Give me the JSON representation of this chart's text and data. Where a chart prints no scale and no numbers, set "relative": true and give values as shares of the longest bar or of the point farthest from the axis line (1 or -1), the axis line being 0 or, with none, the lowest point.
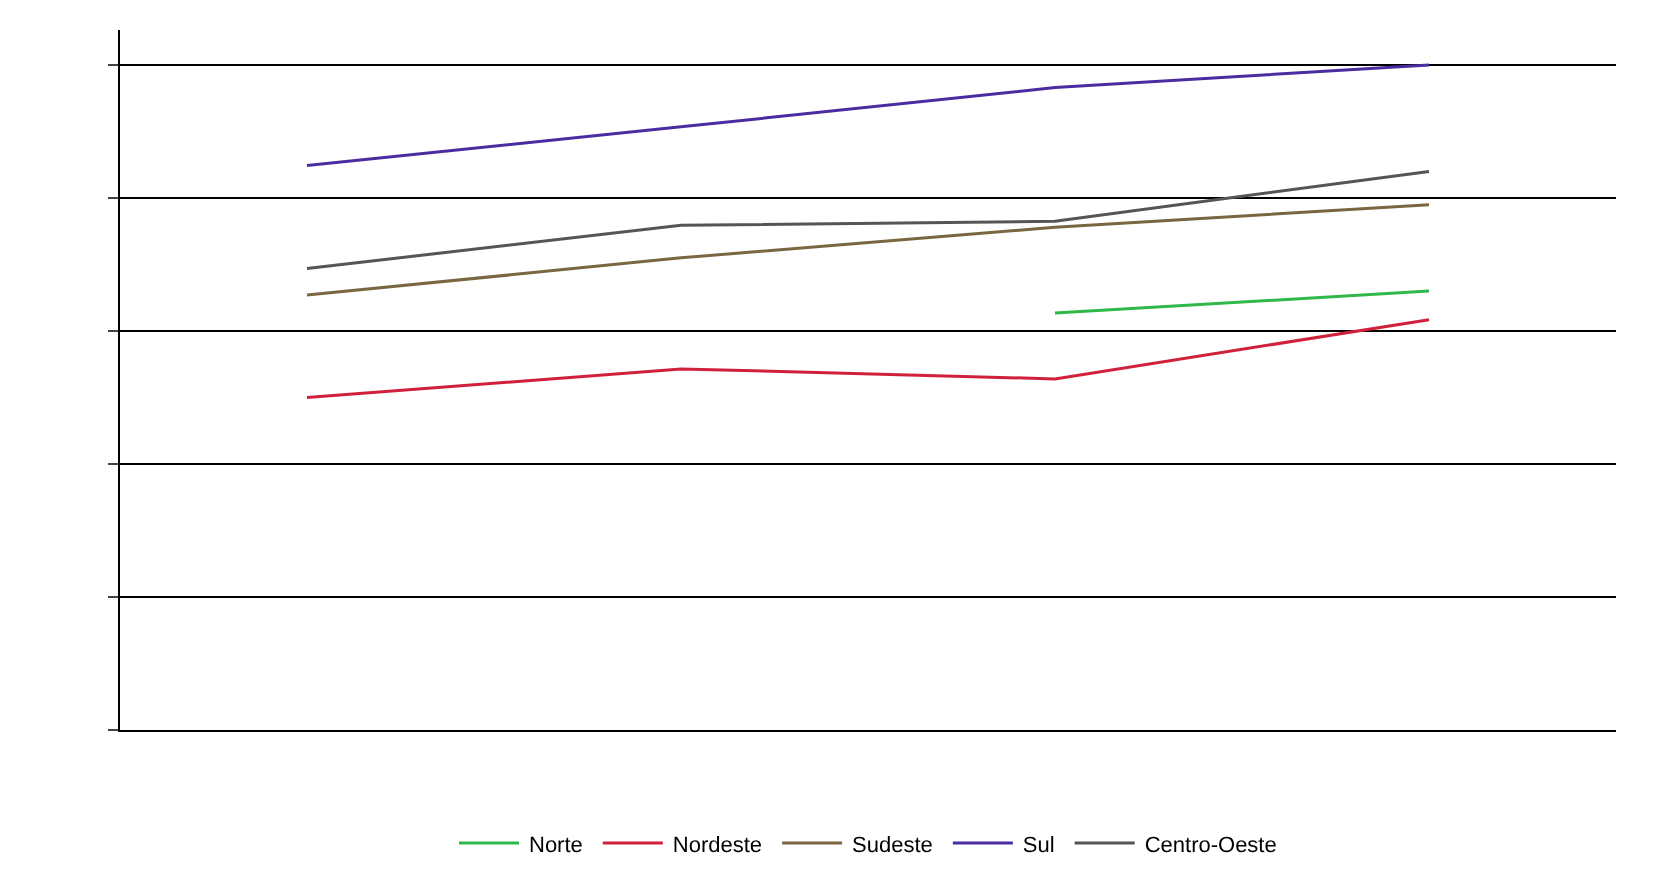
{
  "chart_data": {
    "type": "line",
    "relative": true,
    "grid": true,
    "legend": "bottom",
    "marker": "none",
    "categories": [
      null,
      null,
      null,
      null
    ],
    "series": [
      {
        "name": "Norte",
        "color": "#2eb84a",
        "values": [
          null,
          null,
          0.627,
          0.66
        ]
      },
      {
        "name": "Nordeste",
        "color": "#d0203c",
        "values": [
          0.5,
          0.543,
          0.528,
          0.617
        ]
      },
      {
        "name": "Sudeste",
        "color": "#7a6640",
        "values": [
          0.654,
          0.71,
          0.756,
          0.79
        ]
      },
      {
        "name": "Sul",
        "color": "#4a2ca0",
        "values": [
          0.849,
          0.907,
          0.966,
          1
        ]
      },
      {
        "name": "Centro-Oeste",
        "color": "#555555",
        "values": [
          0.694,
          0.759,
          0.765,
          0.84
        ]
      }
    ]
  }
}
